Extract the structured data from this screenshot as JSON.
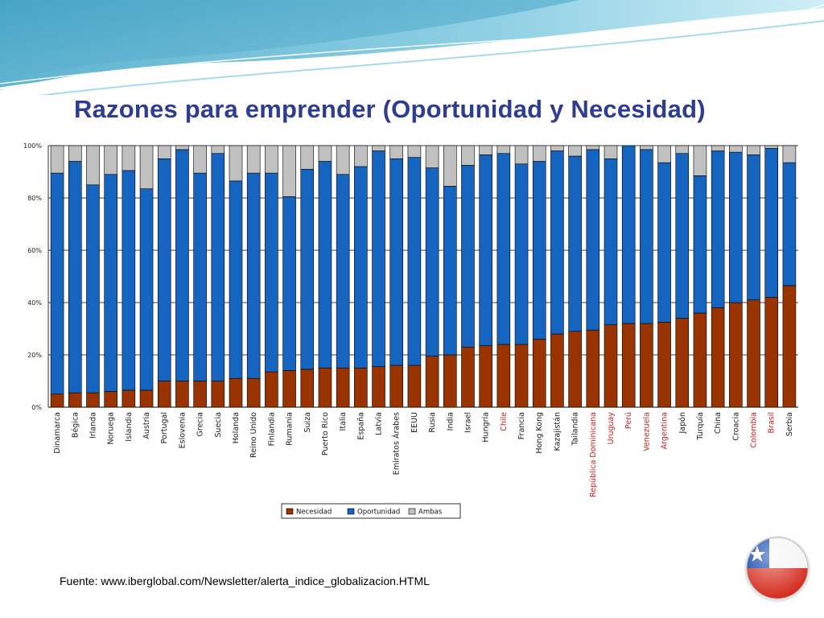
{
  "slide": {
    "source": "Fuente: www.iberglobal.com/Newsletter/alerta_indice_globalizacion.HTML"
  },
  "colors": {
    "title": "#2e3d8f",
    "highlight_label": "#cc2222",
    "normal_label": "#222222"
  },
  "chart_data": {
    "type": "bar",
    "stacked": true,
    "title": "Razones para emprender (Oportunidad y Necesidad)",
    "ylim": [
      0,
      100
    ],
    "yticks": [
      "0%",
      "20%",
      "40%",
      "60%",
      "80%",
      "100%"
    ],
    "grid": true,
    "legend_position": "bottom-center",
    "categories": [
      "Dinamarca",
      "Bégica",
      "Irlanda",
      "Noruega",
      "Islandia",
      "Austria",
      "Portugal",
      "Eslovenia",
      "Grecia",
      "Suecia",
      "Holanda",
      "Reino Unido",
      "Finlandia",
      "Rumania",
      "Suiza",
      "Puerto Rico",
      "Italia",
      "España",
      "Latvia",
      "Emiratos Árabes",
      "EEUU",
      "Rusia",
      "India",
      "Israel",
      "Hungría",
      "Chile",
      "Francia",
      "Hong Kong",
      "Kazajistán",
      "Tailandia",
      "República Dominicana",
      "Uruguay",
      "Perú",
      "Venezuela",
      "Argentina",
      "Japón",
      "Turquía",
      "China",
      "Croacia",
      "Colombia",
      "Brasil",
      "Serbia"
    ],
    "highlighted": [
      "Chile",
      "República Dominicana",
      "Uruguay",
      "Perú",
      "Venezuela",
      "Argentina",
      "Colombia",
      "Brasil"
    ],
    "series": [
      {
        "name": "Necesidad",
        "color": "#993300",
        "values": [
          5,
          5.5,
          5.5,
          6,
          6.5,
          6.5,
          10,
          10,
          10,
          10,
          11,
          11,
          13.5,
          14,
          14.5,
          15,
          15,
          15,
          15.5,
          16,
          16,
          19.5,
          20,
          23,
          23.5,
          24,
          24,
          26,
          28,
          29,
          29.5,
          31.5,
          32,
          32,
          32.5,
          34,
          36,
          38,
          40,
          41,
          42,
          46.5
        ]
      },
      {
        "name": "Oportunidad",
        "color": "#1565c0",
        "values": [
          84.5,
          88.5,
          79.5,
          83,
          84,
          77,
          85,
          88.5,
          79.5,
          87,
          75.5,
          78.5,
          76,
          66.5,
          76.5,
          79,
          74,
          77,
          82.5,
          79,
          79.5,
          72,
          64.5,
          69.5,
          73,
          73,
          69,
          68,
          70,
          67,
          69,
          63.5,
          68,
          66.5,
          61,
          63,
          52.5,
          60,
          57.5,
          55.5,
          57,
          47
        ]
      },
      {
        "name": "Ambas",
        "color": "#c0c0c0",
        "values": [
          10.5,
          6,
          15,
          11,
          9.5,
          16.5,
          5,
          1.5,
          10.5,
          3,
          13.5,
          10.5,
          10.5,
          19.5,
          9,
          6,
          11,
          8,
          2,
          5,
          4.5,
          8.5,
          15.5,
          7.5,
          3.5,
          3,
          7,
          6,
          2,
          4,
          1.5,
          5,
          0,
          1.5,
          6.5,
          3,
          11.5,
          2,
          2.5,
          3.5,
          1,
          6.5
        ]
      }
    ]
  }
}
